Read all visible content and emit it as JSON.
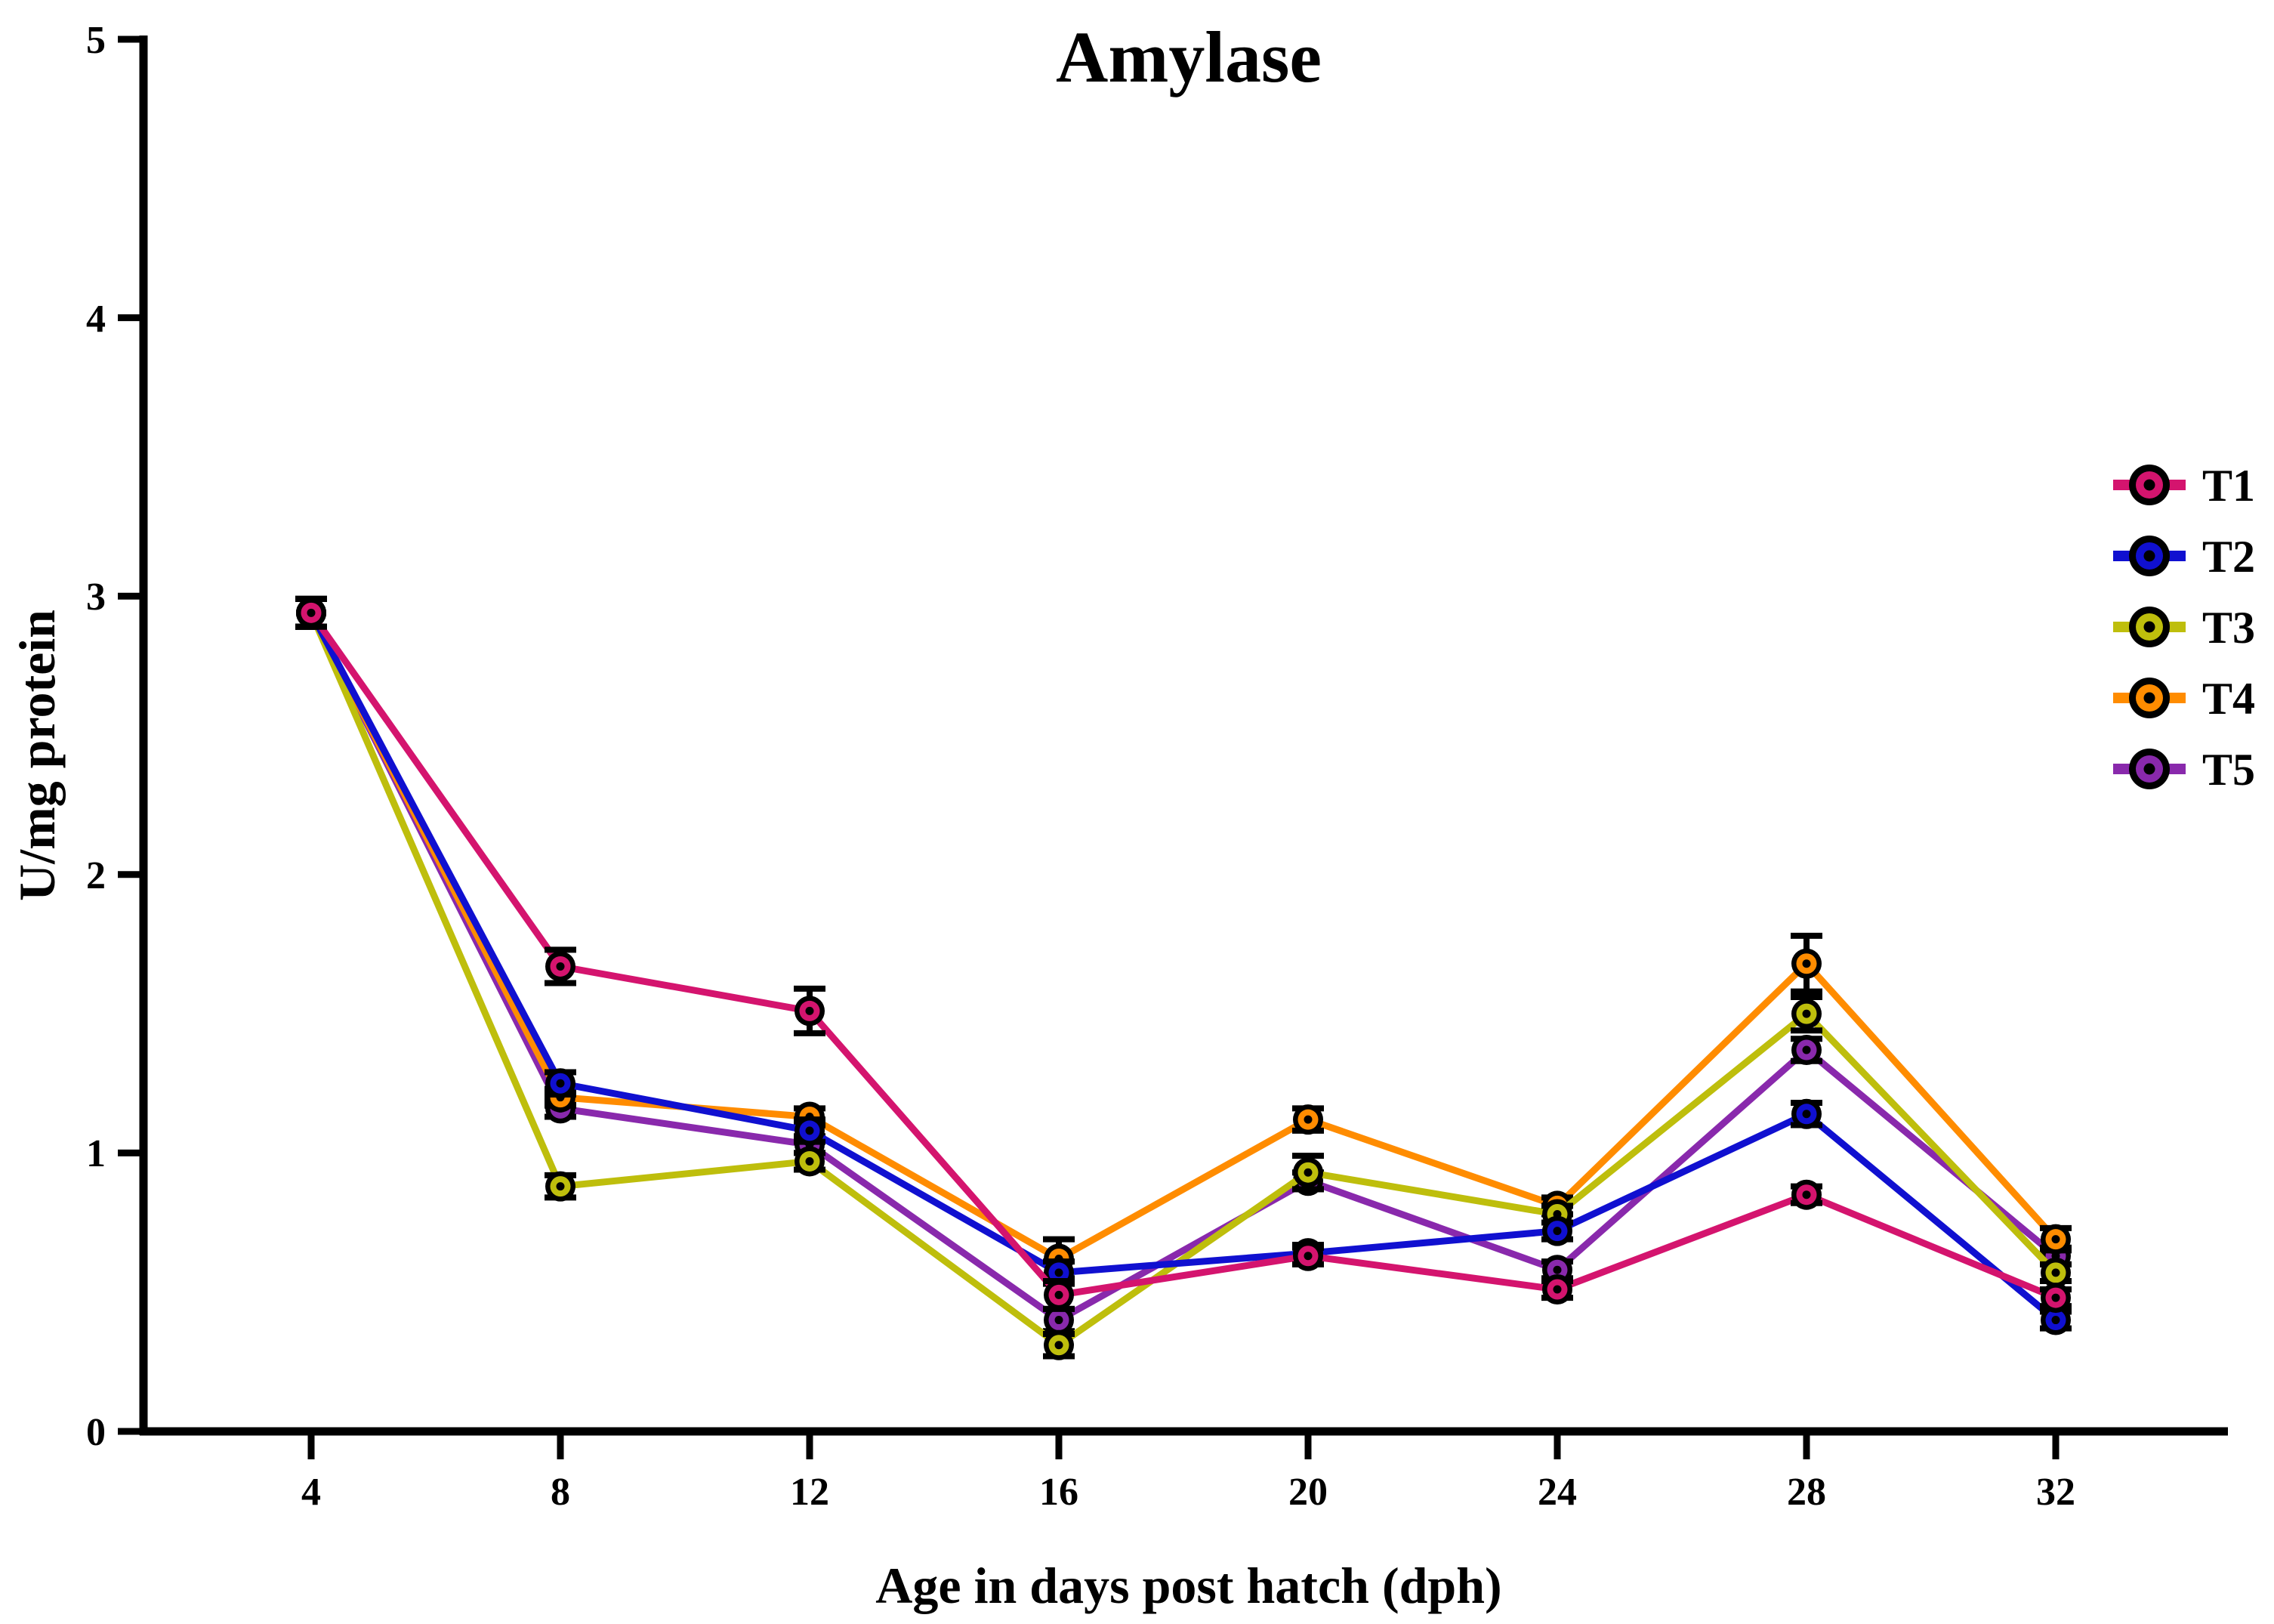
{
  "chart_data": {
    "type": "line",
    "title": "Amylase",
    "xlabel": "Age in days post hatch (dph)",
    "ylabel": "U/mg protein",
    "x": [
      4,
      8,
      12,
      16,
      20,
      24,
      28,
      32
    ],
    "x_tick_labels": [
      "4",
      "8",
      "12",
      "16",
      "20",
      "24",
      "28",
      "32"
    ],
    "y_tick_labels_top_down": [
      "5",
      "4",
      "3",
      "2",
      "1",
      "0"
    ],
    "ylim": [
      0,
      5
    ],
    "grid": false,
    "legend_position": "right",
    "marker_style": "filled-circle-with-black-ring-and-center-dot",
    "error_bars": true,
    "series": [
      {
        "name": "T1",
        "color": "#D4146E",
        "values": [
          2.94,
          1.67,
          1.51,
          0.49,
          0.63,
          0.51,
          0.85,
          0.48
        ],
        "errors": [
          0.05,
          0.06,
          0.08,
          0.05,
          0.03,
          0.03,
          0.03,
          0.03
        ]
      },
      {
        "name": "T2",
        "color": "#1010D0",
        "values": [
          2.94,
          1.25,
          1.08,
          0.57,
          0.64,
          0.72,
          1.14,
          0.4
        ],
        "errors": [
          0.05,
          0.04,
          0.04,
          0.04,
          0.03,
          0.03,
          0.04,
          0.03
        ]
      },
      {
        "name": "T3",
        "color": "#BEBE0C",
        "values": [
          2.94,
          0.88,
          0.97,
          0.31,
          0.93,
          0.78,
          1.5,
          0.57
        ],
        "errors": [
          0.05,
          0.04,
          0.03,
          0.04,
          0.06,
          0.03,
          0.06,
          0.03
        ]
      },
      {
        "name": "T4",
        "color": "#FF8C00",
        "values": [
          2.94,
          1.2,
          1.13,
          0.62,
          1.12,
          0.81,
          1.68,
          0.69
        ],
        "errors": [
          0.05,
          0.03,
          0.03,
          0.07,
          0.04,
          0.03,
          0.1,
          0.04
        ]
      },
      {
        "name": "T5",
        "color": "#8929AC",
        "values": [
          2.94,
          1.16,
          1.03,
          0.4,
          0.9,
          0.58,
          1.37,
          0.63
        ],
        "errors": [
          0.05,
          0.03,
          0.03,
          0.04,
          0.03,
          0.03,
          0.04,
          0.03
        ]
      }
    ],
    "draw_order": [
      4,
      3,
      2,
      1,
      0
    ]
  }
}
